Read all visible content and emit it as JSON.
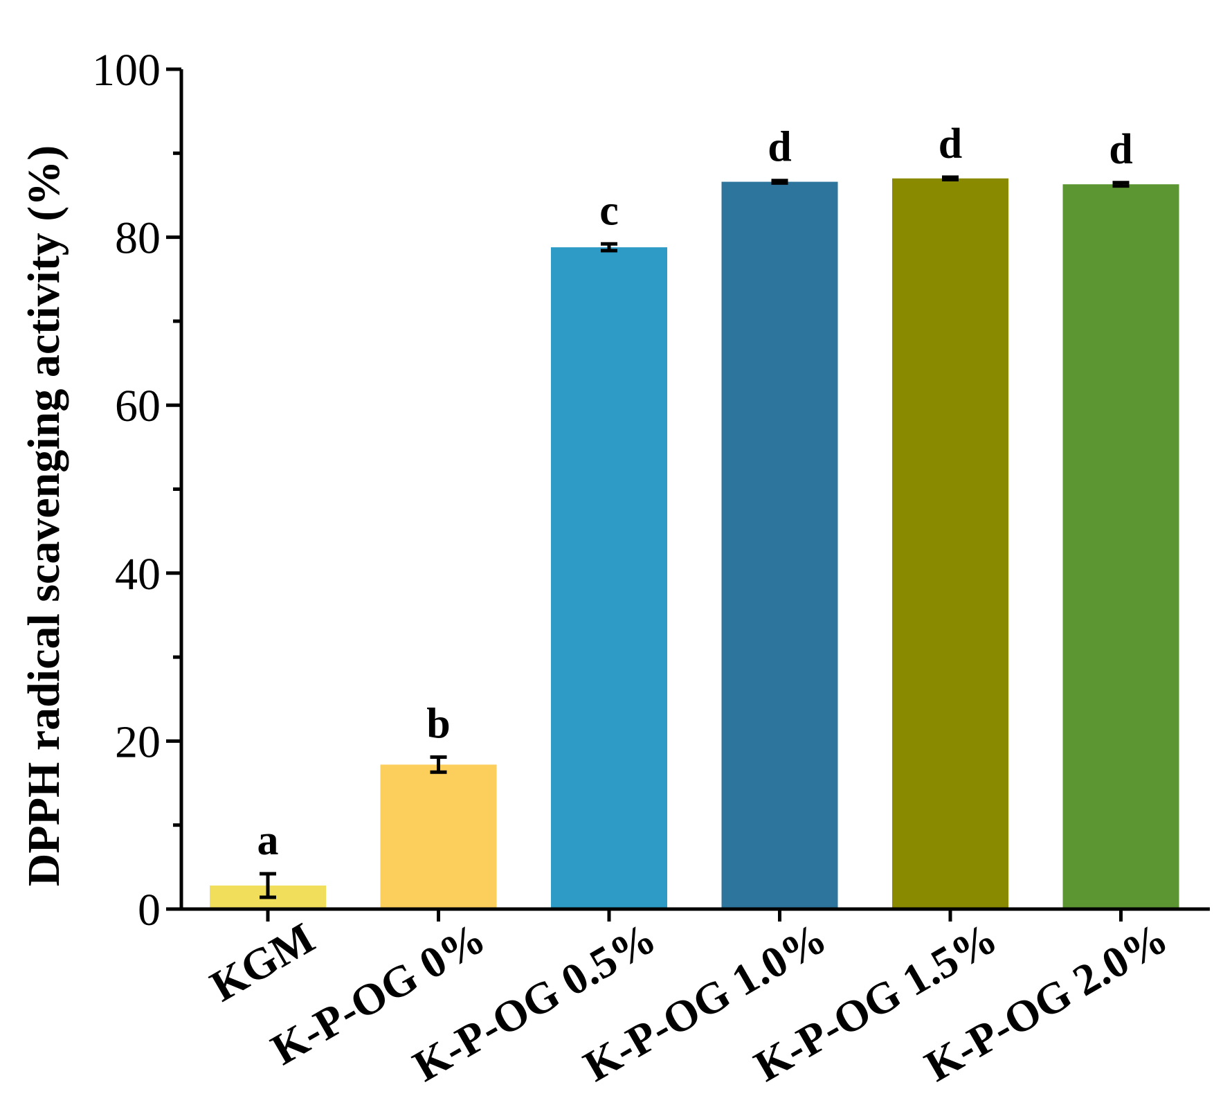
{
  "chart_data": {
    "type": "bar",
    "title": "",
    "xlabel": "",
    "ylabel": "DPPH radical scavenging activity (%)",
    "ylim": [
      0,
      100
    ],
    "yticks": [
      0,
      20,
      40,
      60,
      80,
      100
    ],
    "categories": [
      "KGM",
      "K-P-OG 0%",
      "K-P-OG 0.5%",
      "K-P-OG 1.0%",
      "K-P-OG 1.5%",
      "K-P-OG 2.0%"
    ],
    "values": [
      2.8,
      17.2,
      78.8,
      86.6,
      87.0,
      86.3
    ],
    "errors": [
      1.4,
      0.9,
      0.4,
      0.15,
      0.15,
      0.2
    ],
    "significance": [
      "a",
      "b",
      "c",
      "d",
      "d",
      "d"
    ],
    "colors": [
      "#F1DE5B",
      "#FCCF5C",
      "#2E9AC6",
      "#2E759D",
      "#8A8A00",
      "#5B9632"
    ],
    "grid": false,
    "legend": "none"
  }
}
